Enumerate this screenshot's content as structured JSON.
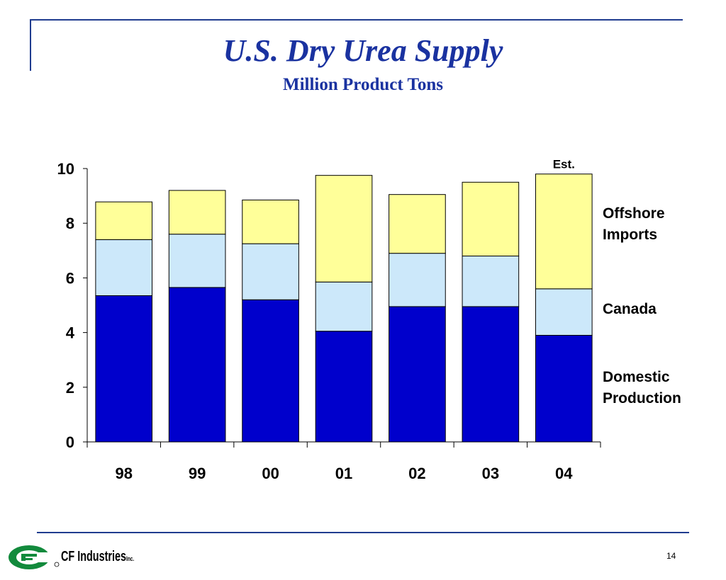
{
  "slide": {
    "title": "U.S. Dry Urea Supply",
    "subtitle": "Million Product Tons",
    "page_number": "14",
    "brand": {
      "name": "CF Industries",
      "suffix": "Inc."
    }
  },
  "colors": {
    "frame": "#1f3c8f",
    "title": "#1a32a0",
    "domestic": "#0000cc",
    "canada": "#cce8fa",
    "offshore": "#ffff99",
    "logo_green": "#128a3c"
  },
  "chart_data": {
    "type": "bar",
    "stacked": true,
    "title": "",
    "xlabel": "",
    "ylabel": "",
    "categories": [
      "98",
      "99",
      "00",
      "01",
      "02",
      "03",
      "04"
    ],
    "ylim": [
      0,
      10
    ],
    "yticks": [
      0,
      2,
      4,
      6,
      8,
      10
    ],
    "series": [
      {
        "name": "Domestic Production",
        "values": [
          5.35,
          5.65,
          5.2,
          4.05,
          4.95,
          4.95,
          3.9
        ],
        "color": "#0000cc"
      },
      {
        "name": "Canada",
        "values": [
          2.05,
          1.95,
          2.05,
          1.8,
          1.95,
          1.85,
          1.7
        ],
        "color": "#cce8fa"
      },
      {
        "name": "Offshore Imports",
        "values": [
          1.38,
          1.6,
          1.6,
          3.9,
          2.15,
          2.7,
          4.2
        ],
        "color": "#ffff99"
      }
    ],
    "legend": {
      "placement": "right",
      "items": [
        {
          "lines": [
            "Offshore",
            "Imports"
          ]
        },
        {
          "lines": [
            "Canada"
          ]
        },
        {
          "lines": [
            "Domestic",
            "Production"
          ]
        }
      ]
    },
    "annotations": [
      {
        "text": "Est.",
        "category": "04"
      }
    ],
    "grid": false
  }
}
